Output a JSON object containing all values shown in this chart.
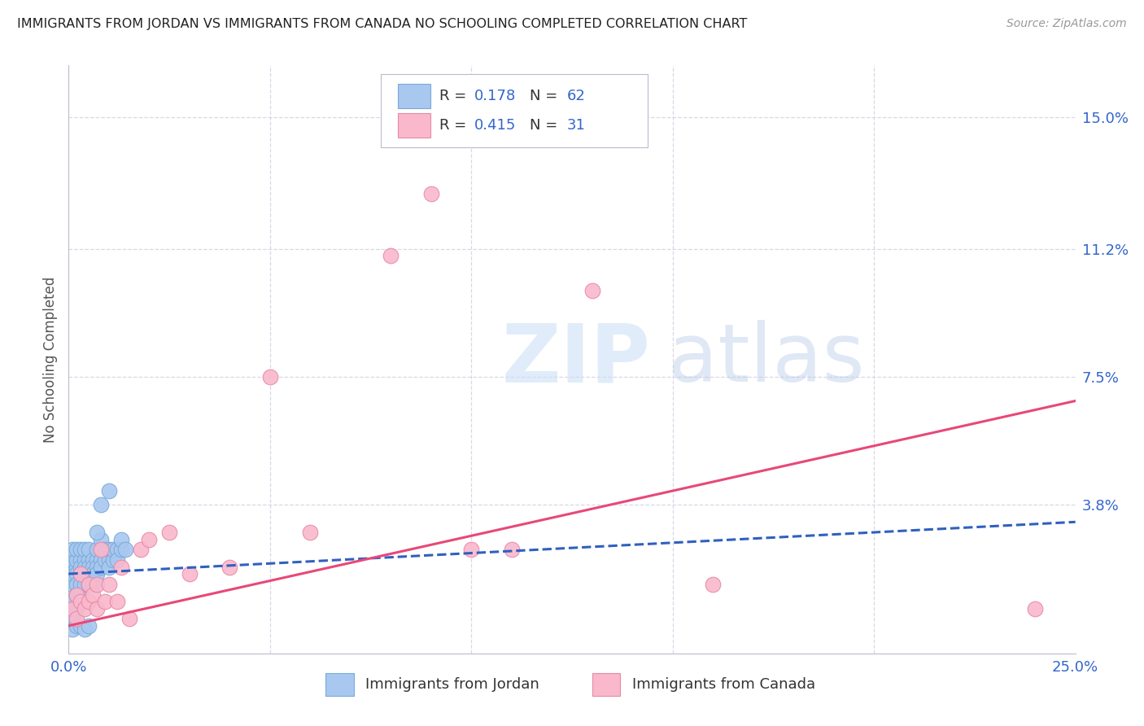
{
  "title": "IMMIGRANTS FROM JORDAN VS IMMIGRANTS FROM CANADA NO SCHOOLING COMPLETED CORRELATION CHART",
  "source": "Source: ZipAtlas.com",
  "ylabel": "No Schooling Completed",
  "xlim": [
    0.0,
    0.25
  ],
  "ylim": [
    -0.005,
    0.165
  ],
  "jordan_color": "#a8c8f0",
  "canada_color": "#f9b8cc",
  "jordan_edge": "#7aaad8",
  "canada_edge": "#e888a8",
  "jordan_line_color": "#3060c0",
  "canada_line_color": "#e84878",
  "background_color": "#ffffff",
  "grid_color": "#d8d8e8",
  "axis_label_color": "#3366cc",
  "title_color": "#222222",
  "legend_jordan_color": "#a8c8f0",
  "legend_canada_color": "#f9b8cc",
  "jordan_x": [
    0.001,
    0.001,
    0.001,
    0.001,
    0.001,
    0.001,
    0.001,
    0.001,
    0.002,
    0.002,
    0.002,
    0.002,
    0.002,
    0.002,
    0.002,
    0.003,
    0.003,
    0.003,
    0.003,
    0.003,
    0.003,
    0.004,
    0.004,
    0.004,
    0.004,
    0.004,
    0.005,
    0.005,
    0.005,
    0.005,
    0.005,
    0.006,
    0.006,
    0.006,
    0.006,
    0.007,
    0.007,
    0.007,
    0.007,
    0.008,
    0.008,
    0.008,
    0.009,
    0.009,
    0.01,
    0.01,
    0.01,
    0.011,
    0.011,
    0.012,
    0.012,
    0.013,
    0.013,
    0.014,
    0.001,
    0.002,
    0.003,
    0.004,
    0.005,
    0.007,
    0.008,
    0.01
  ],
  "jordan_y": [
    0.01,
    0.015,
    0.018,
    0.02,
    0.022,
    0.025,
    0.008,
    0.005,
    0.02,
    0.022,
    0.018,
    0.025,
    0.015,
    0.012,
    0.008,
    0.022,
    0.02,
    0.018,
    0.015,
    0.012,
    0.025,
    0.022,
    0.02,
    0.018,
    0.015,
    0.025,
    0.022,
    0.02,
    0.018,
    0.025,
    0.015,
    0.022,
    0.02,
    0.018,
    0.015,
    0.022,
    0.02,
    0.018,
    0.025,
    0.022,
    0.02,
    0.028,
    0.022,
    0.025,
    0.022,
    0.02,
    0.025,
    0.022,
    0.025,
    0.025,
    0.022,
    0.025,
    0.028,
    0.025,
    0.002,
    0.003,
    0.003,
    0.002,
    0.003,
    0.03,
    0.038,
    0.042
  ],
  "canada_x": [
    0.001,
    0.002,
    0.002,
    0.003,
    0.003,
    0.004,
    0.005,
    0.005,
    0.006,
    0.007,
    0.007,
    0.008,
    0.009,
    0.01,
    0.012,
    0.013,
    0.015,
    0.018,
    0.02,
    0.025,
    0.03,
    0.04,
    0.05,
    0.06,
    0.08,
    0.09,
    0.1,
    0.11,
    0.13,
    0.16,
    0.24
  ],
  "canada_y": [
    0.008,
    0.012,
    0.005,
    0.01,
    0.018,
    0.008,
    0.015,
    0.01,
    0.012,
    0.008,
    0.015,
    0.025,
    0.01,
    0.015,
    0.01,
    0.02,
    0.005,
    0.025,
    0.028,
    0.03,
    0.018,
    0.02,
    0.075,
    0.03,
    0.11,
    0.128,
    0.025,
    0.025,
    0.1,
    0.015,
    0.008
  ],
  "jordan_line_x0": 0.0,
  "jordan_line_x1": 0.25,
  "jordan_line_y0": 0.018,
  "jordan_line_y1": 0.033,
  "canada_line_x0": 0.0,
  "canada_line_x1": 0.25,
  "canada_line_y0": 0.003,
  "canada_line_y1": 0.068
}
